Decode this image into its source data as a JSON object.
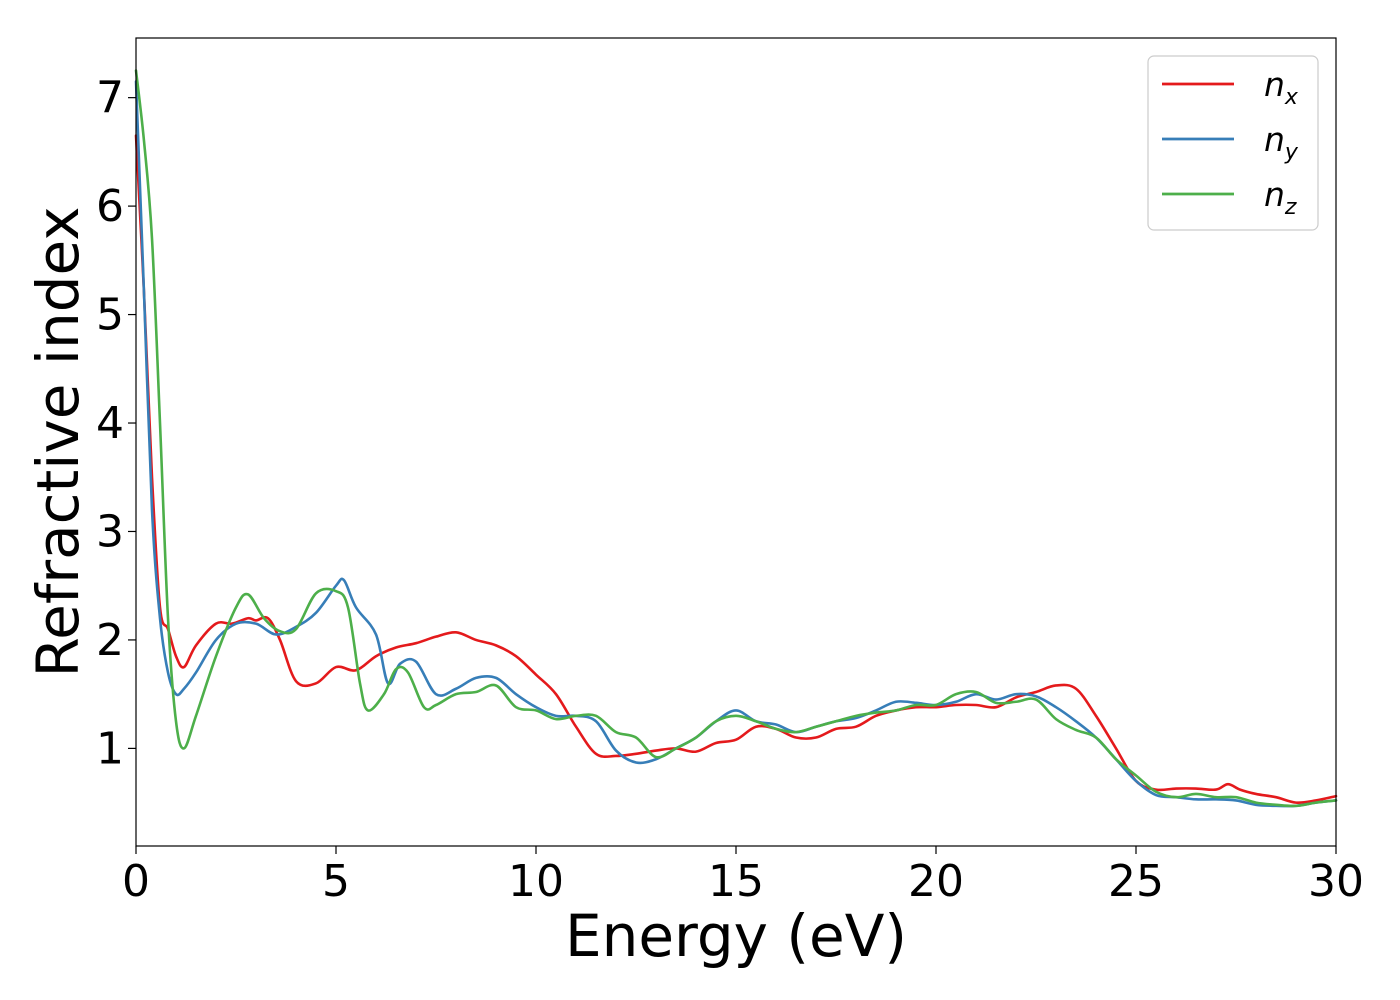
{
  "chart_data": {
    "type": "line",
    "xlabel": "Energy (eV)",
    "ylabel": "Refractive index",
    "xlim": [
      0,
      30
    ],
    "ylim": [
      0.1,
      7.55
    ],
    "xticks": [
      0,
      5,
      10,
      15,
      20,
      25,
      30
    ],
    "yticks": [
      1,
      2,
      3,
      4,
      5,
      6,
      7
    ],
    "grid": false,
    "legend_position": "top-right",
    "series": [
      {
        "name": "n_x",
        "legend_base": "n",
        "legend_sub": "x",
        "color": "#e41a1c",
        "x": [
          0,
          0.2,
          0.4,
          0.6,
          0.8,
          1.0,
          1.2,
          1.5,
          2.0,
          2.4,
          2.8,
          3.0,
          3.3,
          3.6,
          4.0,
          4.5,
          5.0,
          5.5,
          6.0,
          6.5,
          7.0,
          7.5,
          8.0,
          8.5,
          9.0,
          9.5,
          10.0,
          10.5,
          11.0,
          11.5,
          12.0,
          12.5,
          13.0,
          13.5,
          14.0,
          14.5,
          15.0,
          15.5,
          16.0,
          16.5,
          17.0,
          17.5,
          18.0,
          18.5,
          19.0,
          19.5,
          20.0,
          20.5,
          21.0,
          21.5,
          22.0,
          22.5,
          23.0,
          23.5,
          24.0,
          24.5,
          25.0,
          25.5,
          26.0,
          26.5,
          27.0,
          27.3,
          27.6,
          28.0,
          28.5,
          29.0,
          29.5,
          30.0
        ],
        "y": [
          6.65,
          5.2,
          3.5,
          2.3,
          2.1,
          1.85,
          1.75,
          1.95,
          2.15,
          2.15,
          2.2,
          2.18,
          2.2,
          2.0,
          1.62,
          1.6,
          1.75,
          1.72,
          1.85,
          1.93,
          1.97,
          2.03,
          2.07,
          2.0,
          1.95,
          1.85,
          1.68,
          1.5,
          1.2,
          0.95,
          0.93,
          0.95,
          0.98,
          1.0,
          0.97,
          1.05,
          1.08,
          1.2,
          1.18,
          1.1,
          1.1,
          1.18,
          1.2,
          1.3,
          1.35,
          1.38,
          1.38,
          1.4,
          1.4,
          1.38,
          1.47,
          1.52,
          1.58,
          1.55,
          1.3,
          1.0,
          0.7,
          0.62,
          0.63,
          0.63,
          0.62,
          0.67,
          0.62,
          0.58,
          0.55,
          0.5,
          0.52,
          0.56
        ]
      },
      {
        "name": "n_y",
        "legend_base": "n",
        "legend_sub": "y",
        "color": "#377eb8",
        "x": [
          0,
          0.2,
          0.4,
          0.6,
          0.8,
          1.0,
          1.2,
          1.5,
          2.0,
          2.5,
          3.0,
          3.5,
          4.0,
          4.5,
          5.0,
          5.2,
          5.5,
          6.0,
          6.3,
          6.6,
          7.0,
          7.5,
          8.0,
          8.5,
          9.0,
          9.5,
          10.0,
          10.5,
          11.0,
          11.5,
          12.0,
          12.5,
          13.0,
          13.5,
          14.0,
          14.5,
          15.0,
          15.5,
          16.0,
          16.5,
          17.0,
          17.5,
          18.0,
          18.5,
          19.0,
          19.5,
          20.0,
          20.5,
          21.0,
          21.5,
          22.0,
          22.5,
          23.0,
          23.5,
          24.0,
          24.5,
          25.0,
          25.5,
          26.0,
          26.5,
          27.0,
          27.5,
          28.0,
          28.5,
          29.0,
          29.5,
          30.0
        ],
        "y": [
          7.15,
          5.2,
          3.2,
          2.2,
          1.7,
          1.5,
          1.55,
          1.7,
          2.0,
          2.15,
          2.15,
          2.05,
          2.12,
          2.25,
          2.5,
          2.55,
          2.3,
          2.05,
          1.6,
          1.78,
          1.8,
          1.5,
          1.55,
          1.65,
          1.65,
          1.5,
          1.38,
          1.3,
          1.3,
          1.25,
          0.98,
          0.87,
          0.9,
          1.0,
          1.1,
          1.25,
          1.35,
          1.25,
          1.22,
          1.15,
          1.2,
          1.25,
          1.28,
          1.35,
          1.43,
          1.42,
          1.4,
          1.43,
          1.5,
          1.45,
          1.5,
          1.48,
          1.38,
          1.25,
          1.1,
          0.9,
          0.7,
          0.57,
          0.55,
          0.53,
          0.53,
          0.52,
          0.48,
          0.47,
          0.47,
          0.5,
          0.52
        ]
      },
      {
        "name": "n_z",
        "legend_base": "n",
        "legend_sub": "z",
        "color": "#4daf4a",
        "x": [
          0,
          0.2,
          0.4,
          0.6,
          0.8,
          1.0,
          1.2,
          1.5,
          2.0,
          2.5,
          2.8,
          3.2,
          3.6,
          4.0,
          4.5,
          5.0,
          5.3,
          5.6,
          5.8,
          6.2,
          6.5,
          6.8,
          7.2,
          7.5,
          8.0,
          8.5,
          9.0,
          9.5,
          10.0,
          10.5,
          11.0,
          11.5,
          12.0,
          12.5,
          13.0,
          13.5,
          14.0,
          14.5,
          15.0,
          15.5,
          16.0,
          16.5,
          17.0,
          17.5,
          18.0,
          18.5,
          19.0,
          19.5,
          20.0,
          20.5,
          21.0,
          21.5,
          22.0,
          22.5,
          23.0,
          23.5,
          24.0,
          24.5,
          25.0,
          25.5,
          26.0,
          26.5,
          27.0,
          27.5,
          28.0,
          28.5,
          29.0,
          29.5,
          30.0
        ],
        "y": [
          7.25,
          6.6,
          5.7,
          4.0,
          2.2,
          1.25,
          1.0,
          1.3,
          1.85,
          2.3,
          2.42,
          2.2,
          2.08,
          2.1,
          2.43,
          2.45,
          2.3,
          1.6,
          1.35,
          1.5,
          1.73,
          1.7,
          1.38,
          1.4,
          1.5,
          1.52,
          1.58,
          1.38,
          1.35,
          1.27,
          1.3,
          1.3,
          1.15,
          1.1,
          0.92,
          1.0,
          1.1,
          1.25,
          1.3,
          1.25,
          1.18,
          1.15,
          1.2,
          1.25,
          1.3,
          1.33,
          1.35,
          1.4,
          1.4,
          1.5,
          1.52,
          1.42,
          1.43,
          1.45,
          1.27,
          1.17,
          1.1,
          0.9,
          0.75,
          0.6,
          0.55,
          0.58,
          0.55,
          0.55,
          0.5,
          0.48,
          0.47,
          0.5,
          0.52
        ]
      }
    ]
  }
}
